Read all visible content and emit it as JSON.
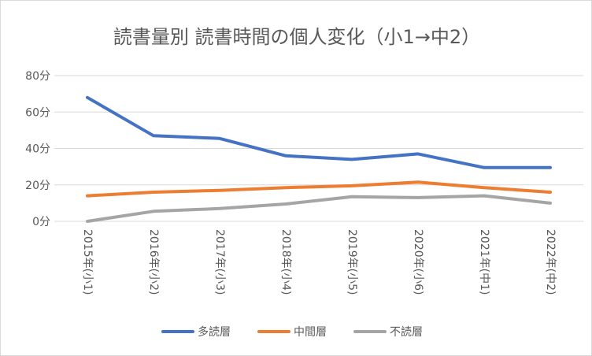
{
  "chart_data": {
    "type": "line",
    "title": "読書量別 読書時間の個人変化（小1→中2）",
    "xlabel": "",
    "ylabel": "",
    "categories": [
      "2015年(小1)",
      "2016年(小2)",
      "2017年(小3)",
      "2018年(小4)",
      "2019年(小5)",
      "2020年(小6)",
      "2021年(中1)",
      "2022年(中2)"
    ],
    "y_ticks": [
      "0分",
      "20分",
      "40分",
      "60分",
      "80分"
    ],
    "ylim": [
      0,
      80
    ],
    "grid": true,
    "legend_position": "bottom",
    "series": [
      {
        "name": "多読層",
        "color": "#4472c4",
        "values": [
          68,
          47,
          45.5,
          36,
          34,
          37,
          29.5,
          29.5
        ]
      },
      {
        "name": "中間層",
        "color": "#ed7d31",
        "values": [
          14,
          16,
          17,
          18.5,
          19.5,
          21.5,
          18.5,
          16
        ]
      },
      {
        "name": "不読層",
        "color": "#a5a5a5",
        "values": [
          0,
          5.5,
          7,
          9.5,
          13.5,
          13,
          14,
          10
        ]
      }
    ]
  }
}
